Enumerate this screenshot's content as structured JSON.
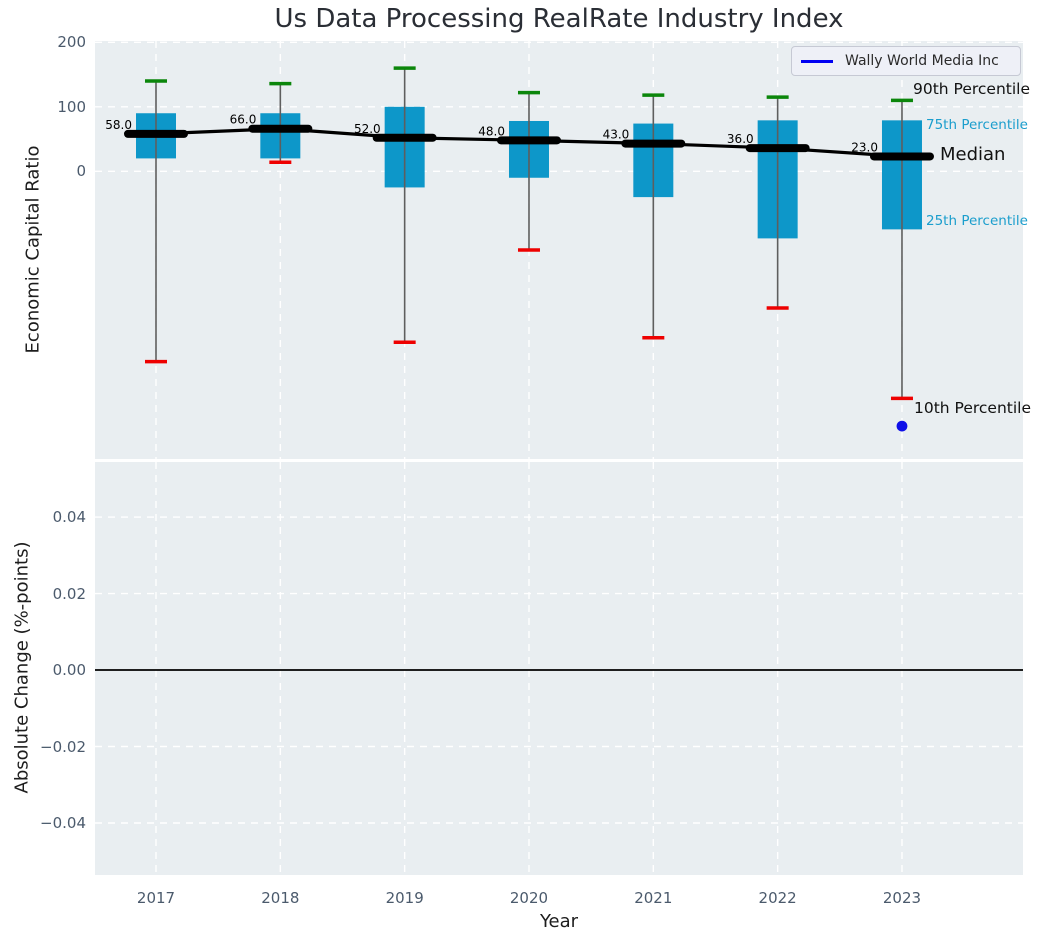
{
  "title": "Us Data Processing RealRate Industry Index",
  "legend": {
    "label": "Wally World Media Inc",
    "line_color": "#0000f2"
  },
  "annotations": {
    "p90": {
      "text": "90th Percentile",
      "color": "#111111"
    },
    "p75": {
      "text": "75th Percentile",
      "color": "#1b9ecd"
    },
    "median": {
      "text": "Median",
      "color": "#111111"
    },
    "p25": {
      "text": "25th Percentile",
      "color": "#1b9ecd"
    },
    "p10": {
      "text": "10th Percentile",
      "color": "#111111"
    }
  },
  "colors": {
    "axes_bg": "#e9eef1",
    "grid": "#ffffff",
    "box_fill": "#0d97c9",
    "whisker": "#5e5e5e",
    "cap_top": "#0b860b",
    "cap_bottom": "#ee0000",
    "median": "#000000",
    "company_point": "#0f0fe8",
    "zero_line": "#000000",
    "tick_text": "#4b5a6c"
  },
  "chart_data": [
    {
      "type": "box-percentile",
      "ylabel": "Economic Capital Ratio",
      "categories": [
        "2017",
        "2018",
        "2019",
        "2020",
        "2021",
        "2022",
        "2023"
      ],
      "yticks": [
        {
          "v": 0,
          "label": "0"
        },
        {
          "v": 100,
          "label": "100"
        },
        {
          "v": 200,
          "label": "200"
        }
      ],
      "ylim": [
        -446,
        202
      ],
      "grid": true,
      "legend_position": "upper right",
      "series": [
        {
          "name": "90th Percentile",
          "values": [
            140,
            136,
            160,
            122,
            118,
            115,
            110
          ]
        },
        {
          "name": "75th Percentile",
          "values": [
            90,
            90,
            100,
            78,
            74,
            79,
            79
          ]
        },
        {
          "name": "Median",
          "values": [
            58,
            66,
            52,
            48,
            43,
            36,
            23
          ]
        },
        {
          "name": "25th Percentile",
          "values": [
            20,
            20,
            -25,
            -10,
            -40,
            -104,
            -90
          ]
        },
        {
          "name": "10th Percentile",
          "values": [
            -295,
            14,
            -265,
            -122,
            -258,
            -212,
            -352
          ]
        }
      ],
      "median_labels": [
        "58.0",
        "66.0",
        "52.0",
        "48.0",
        "43.0",
        "36.0",
        "23.0"
      ],
      "company_point": {
        "name": "Wally World Media Inc",
        "category": "2023",
        "value": -395
      }
    },
    {
      "type": "line",
      "xlabel": "Year",
      "ylabel": "Absolute Change (%-points)",
      "categories": [
        "2017",
        "2018",
        "2019",
        "2020",
        "2021",
        "2022",
        "2023"
      ],
      "yticks": [
        {
          "v": 0.04,
          "label": "0.04"
        },
        {
          "v": 0.02,
          "label": "0.02"
        },
        {
          "v": 0.0,
          "label": "0.00"
        },
        {
          "v": -0.02,
          "label": "−0.02"
        },
        {
          "v": -0.04,
          "label": "−0.04"
        }
      ],
      "ylim": [
        -0.0536,
        0.0544
      ],
      "grid": true,
      "zero_line": 0.0,
      "series": []
    }
  ]
}
